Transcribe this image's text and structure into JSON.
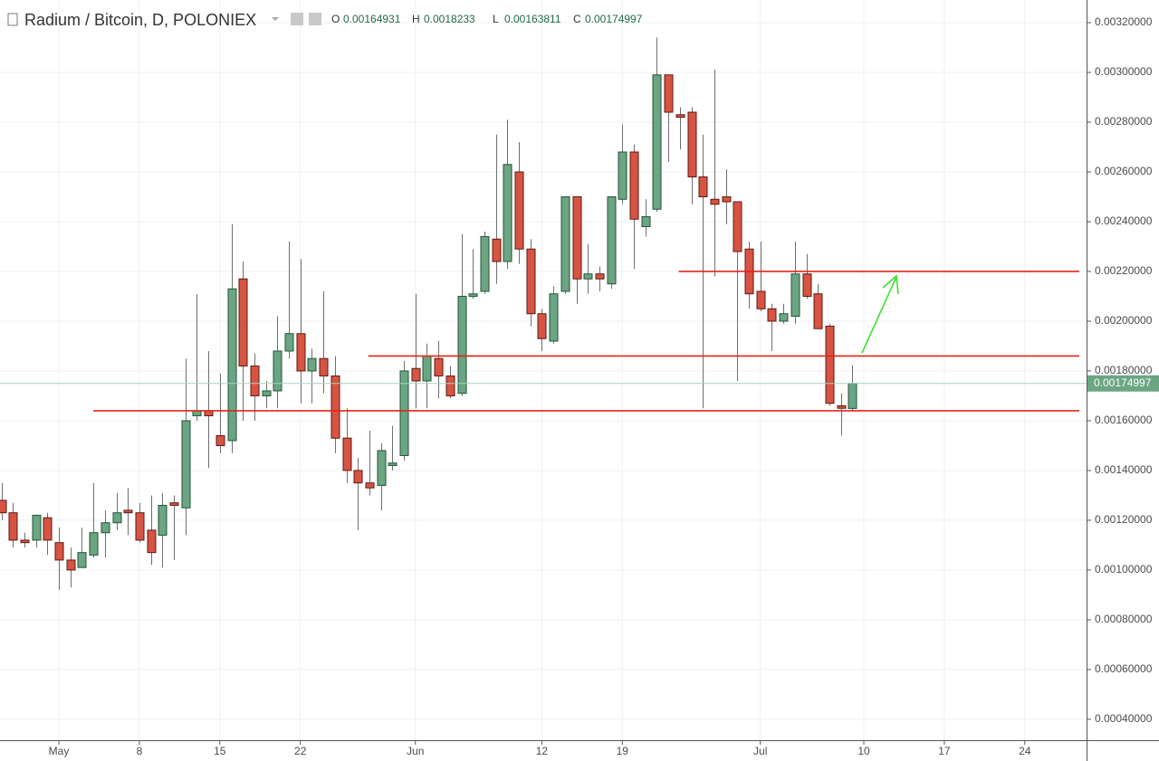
{
  "chart_data": {
    "type": "candlestick",
    "title": "Radium / Bitcoin, D, POLONIEX",
    "ohlc_labels": [
      "O",
      "H",
      "L",
      "C"
    ],
    "x": [
      -5,
      -4,
      -3,
      -2,
      -1,
      0,
      1,
      2,
      3,
      4,
      5,
      6,
      7,
      8,
      9,
      10,
      11,
      12,
      13,
      14,
      15,
      16,
      17,
      18,
      19,
      20,
      21,
      22,
      23,
      24,
      25,
      26,
      27,
      28,
      29,
      30,
      31,
      32,
      33,
      34,
      35,
      36,
      37,
      38,
      39,
      40,
      41,
      42,
      43,
      44,
      45,
      46,
      47,
      48,
      49,
      50,
      51,
      52,
      53,
      54,
      55,
      56,
      57,
      58,
      59,
      60,
      61,
      62,
      63,
      64,
      65,
      66,
      67,
      68,
      69
    ],
    "open": [
      0.00128,
      0.00123,
      0.00112,
      0.00112,
      0.00121,
      0.00111,
      0.00104,
      0.00101,
      0.00106,
      0.00115,
      0.00119,
      0.00124,
      0.00123,
      0.00116,
      0.00114,
      0.00127,
      0.00125,
      0.00162,
      0.00164,
      0.00154,
      0.00152,
      0.00217,
      0.00182,
      0.0017,
      0.00172,
      0.00188,
      0.00195,
      0.0018,
      0.00185,
      0.00178,
      0.00153,
      0.0014,
      0.00135,
      0.00134,
      0.00142,
      0.00146,
      0.00181,
      0.00176,
      0.00185,
      0.00178,
      0.00171,
      0.0021,
      0.00212,
      0.00233,
      0.00224,
      0.0026,
      0.00229,
      0.00203,
      0.00192,
      0.00212,
      0.0025,
      0.00217,
      0.00219,
      0.00215,
      0.00249,
      0.00268,
      0.00238,
      0.00245,
      0.00299,
      0.00283,
      0.00284,
      0.00258,
      0.00249,
      0.0025,
      0.00248,
      0.00229,
      0.00212,
      0.00205,
      0.002,
      0.00202,
      0.00219,
      0.00211,
      0.00198,
      0.00166,
      0.00164931
    ],
    "high": [
      0.00135,
      0.00127,
      0.00115,
      0.00122,
      0.00123,
      0.00117,
      0.00109,
      0.00117,
      0.00135,
      0.00124,
      0.00131,
      0.00133,
      0.00127,
      0.0013,
      0.00131,
      0.0013,
      0.00185,
      0.00211,
      0.00188,
      0.00179,
      0.00239,
      0.00224,
      0.00187,
      0.00176,
      0.00202,
      0.00232,
      0.00225,
      0.00189,
      0.00212,
      0.00186,
      0.00165,
      0.00145,
      0.00156,
      0.00151,
      0.00158,
      0.00184,
      0.00211,
      0.00191,
      0.00192,
      0.00182,
      0.00235,
      0.00229,
      0.00236,
      0.00275,
      0.00281,
      0.00272,
      0.00233,
      0.00205,
      0.00214,
      0.0025,
      0.0025,
      0.00231,
      0.00222,
      0.0025,
      0.00279,
      0.00271,
      0.00249,
      0.00314,
      0.00299,
      0.00286,
      0.00286,
      0.00275,
      0.00301,
      0.00261,
      0.00248,
      0.00232,
      0.00232,
      0.00207,
      0.00207,
      0.00232,
      0.00227,
      0.00215,
      0.00199,
      0.00171,
      0.0018233
    ],
    "low": [
      0.0012,
      0.00109,
      0.00109,
      0.00109,
      0.00106,
      0.00092,
      0.00093,
      0.00101,
      0.00105,
      0.00105,
      0.00116,
      0.00114,
      0.00111,
      0.00102,
      0.00101,
      0.00104,
      0.00114,
      0.0016,
      0.00141,
      0.00147,
      0.00147,
      0.0016,
      0.0016,
      0.00165,
      0.00165,
      0.00185,
      0.00167,
      0.00167,
      0.00171,
      0.00147,
      0.00135,
      0.00116,
      0.0013,
      0.00124,
      0.0014,
      0.00144,
      0.00165,
      0.00165,
      0.00169,
      0.00169,
      0.0017,
      0.00209,
      0.00211,
      0.00215,
      0.00221,
      0.00223,
      0.00198,
      0.00188,
      0.00191,
      0.00211,
      0.00207,
      0.00211,
      0.00212,
      0.00213,
      0.00247,
      0.00221,
      0.00234,
      0.00244,
      0.00264,
      0.00269,
      0.00247,
      0.00165,
      0.00218,
      0.00239,
      0.00176,
      0.00205,
      0.00204,
      0.00188,
      0.00199,
      0.00199,
      0.00209,
      0.00197,
      0.00166,
      0.00154,
      0.00163811
    ],
    "close": [
      0.00123,
      0.00112,
      0.00111,
      0.00122,
      0.00112,
      0.00104,
      0.001,
      0.00107,
      0.00115,
      0.00119,
      0.00123,
      0.00123,
      0.00112,
      0.00107,
      0.00126,
      0.00126,
      0.0016,
      0.00164,
      0.00162,
      0.0015,
      0.00213,
      0.00182,
      0.0017,
      0.00172,
      0.00188,
      0.00195,
      0.0018,
      0.00185,
      0.00178,
      0.00153,
      0.0014,
      0.00135,
      0.00133,
      0.00148,
      0.00143,
      0.0018,
      0.00176,
      0.00186,
      0.00178,
      0.0017,
      0.0021,
      0.00211,
      0.00234,
      0.00224,
      0.00263,
      0.00229,
      0.00203,
      0.00193,
      0.00211,
      0.0025,
      0.00217,
      0.00219,
      0.00217,
      0.0025,
      0.00268,
      0.00241,
      0.00242,
      0.00299,
      0.00284,
      0.00282,
      0.00258,
      0.0025,
      0.00247,
      0.00248,
      0.00228,
      0.00211,
      0.00205,
      0.002,
      0.00203,
      0.00219,
      0.0021,
      0.00197,
      0.00167,
      0.00165,
      0.00174997
    ],
    "up_color": "#6ba583",
    "up_border": "#225437",
    "down_color": "#d75442",
    "down_border": "#5b1a13",
    "hlines": [
      {
        "value": 0.00164,
        "start": 3
      },
      {
        "value": 0.00186,
        "start": 26.9
      },
      {
        "value": 0.0022,
        "start": 53.9
      }
    ],
    "hline_color": "#e3241b",
    "xlim": [
      -5.12,
      89.37
    ],
    "ylim": [
      0.000316,
      0.003291
    ],
    "xticks": [
      {
        "value": 0,
        "label": "May"
      },
      {
        "value": 7,
        "label": "8"
      },
      {
        "value": 14,
        "label": "15"
      },
      {
        "value": 21,
        "label": "22"
      },
      {
        "value": 31,
        "label": "Jun"
      },
      {
        "value": 42,
        "label": "12"
      },
      {
        "value": 49,
        "label": "19"
      },
      {
        "value": 61,
        "label": "Jul"
      },
      {
        "value": 70,
        "label": "10"
      },
      {
        "value": 77,
        "label": "17"
      },
      {
        "value": 84,
        "label": "24"
      }
    ],
    "yticks": [
      {
        "value": 0.0004,
        "label": "0.00040000"
      },
      {
        "value": 0.0006,
        "label": "0.00060000"
      },
      {
        "value": 0.0008,
        "label": "0.00080000"
      },
      {
        "value": 0.001,
        "label": "0.00100000"
      },
      {
        "value": 0.0012,
        "label": "0.00120000"
      },
      {
        "value": 0.0014,
        "label": "0.00140000"
      },
      {
        "value": 0.0016,
        "label": "0.00160000"
      },
      {
        "value": 0.0018,
        "label": "0.00180000"
      },
      {
        "value": 0.002,
        "label": "0.00200000"
      },
      {
        "value": 0.0022,
        "label": "0.00220000"
      },
      {
        "value": 0.0024,
        "label": "0.00240000"
      },
      {
        "value": 0.0026,
        "label": "0.00260000"
      },
      {
        "value": 0.0028,
        "label": "0.00280000"
      },
      {
        "value": 0.003,
        "label": "0.00300000"
      },
      {
        "value": 0.0032,
        "label": "0.00320000"
      }
    ],
    "grid": true
  }
}
